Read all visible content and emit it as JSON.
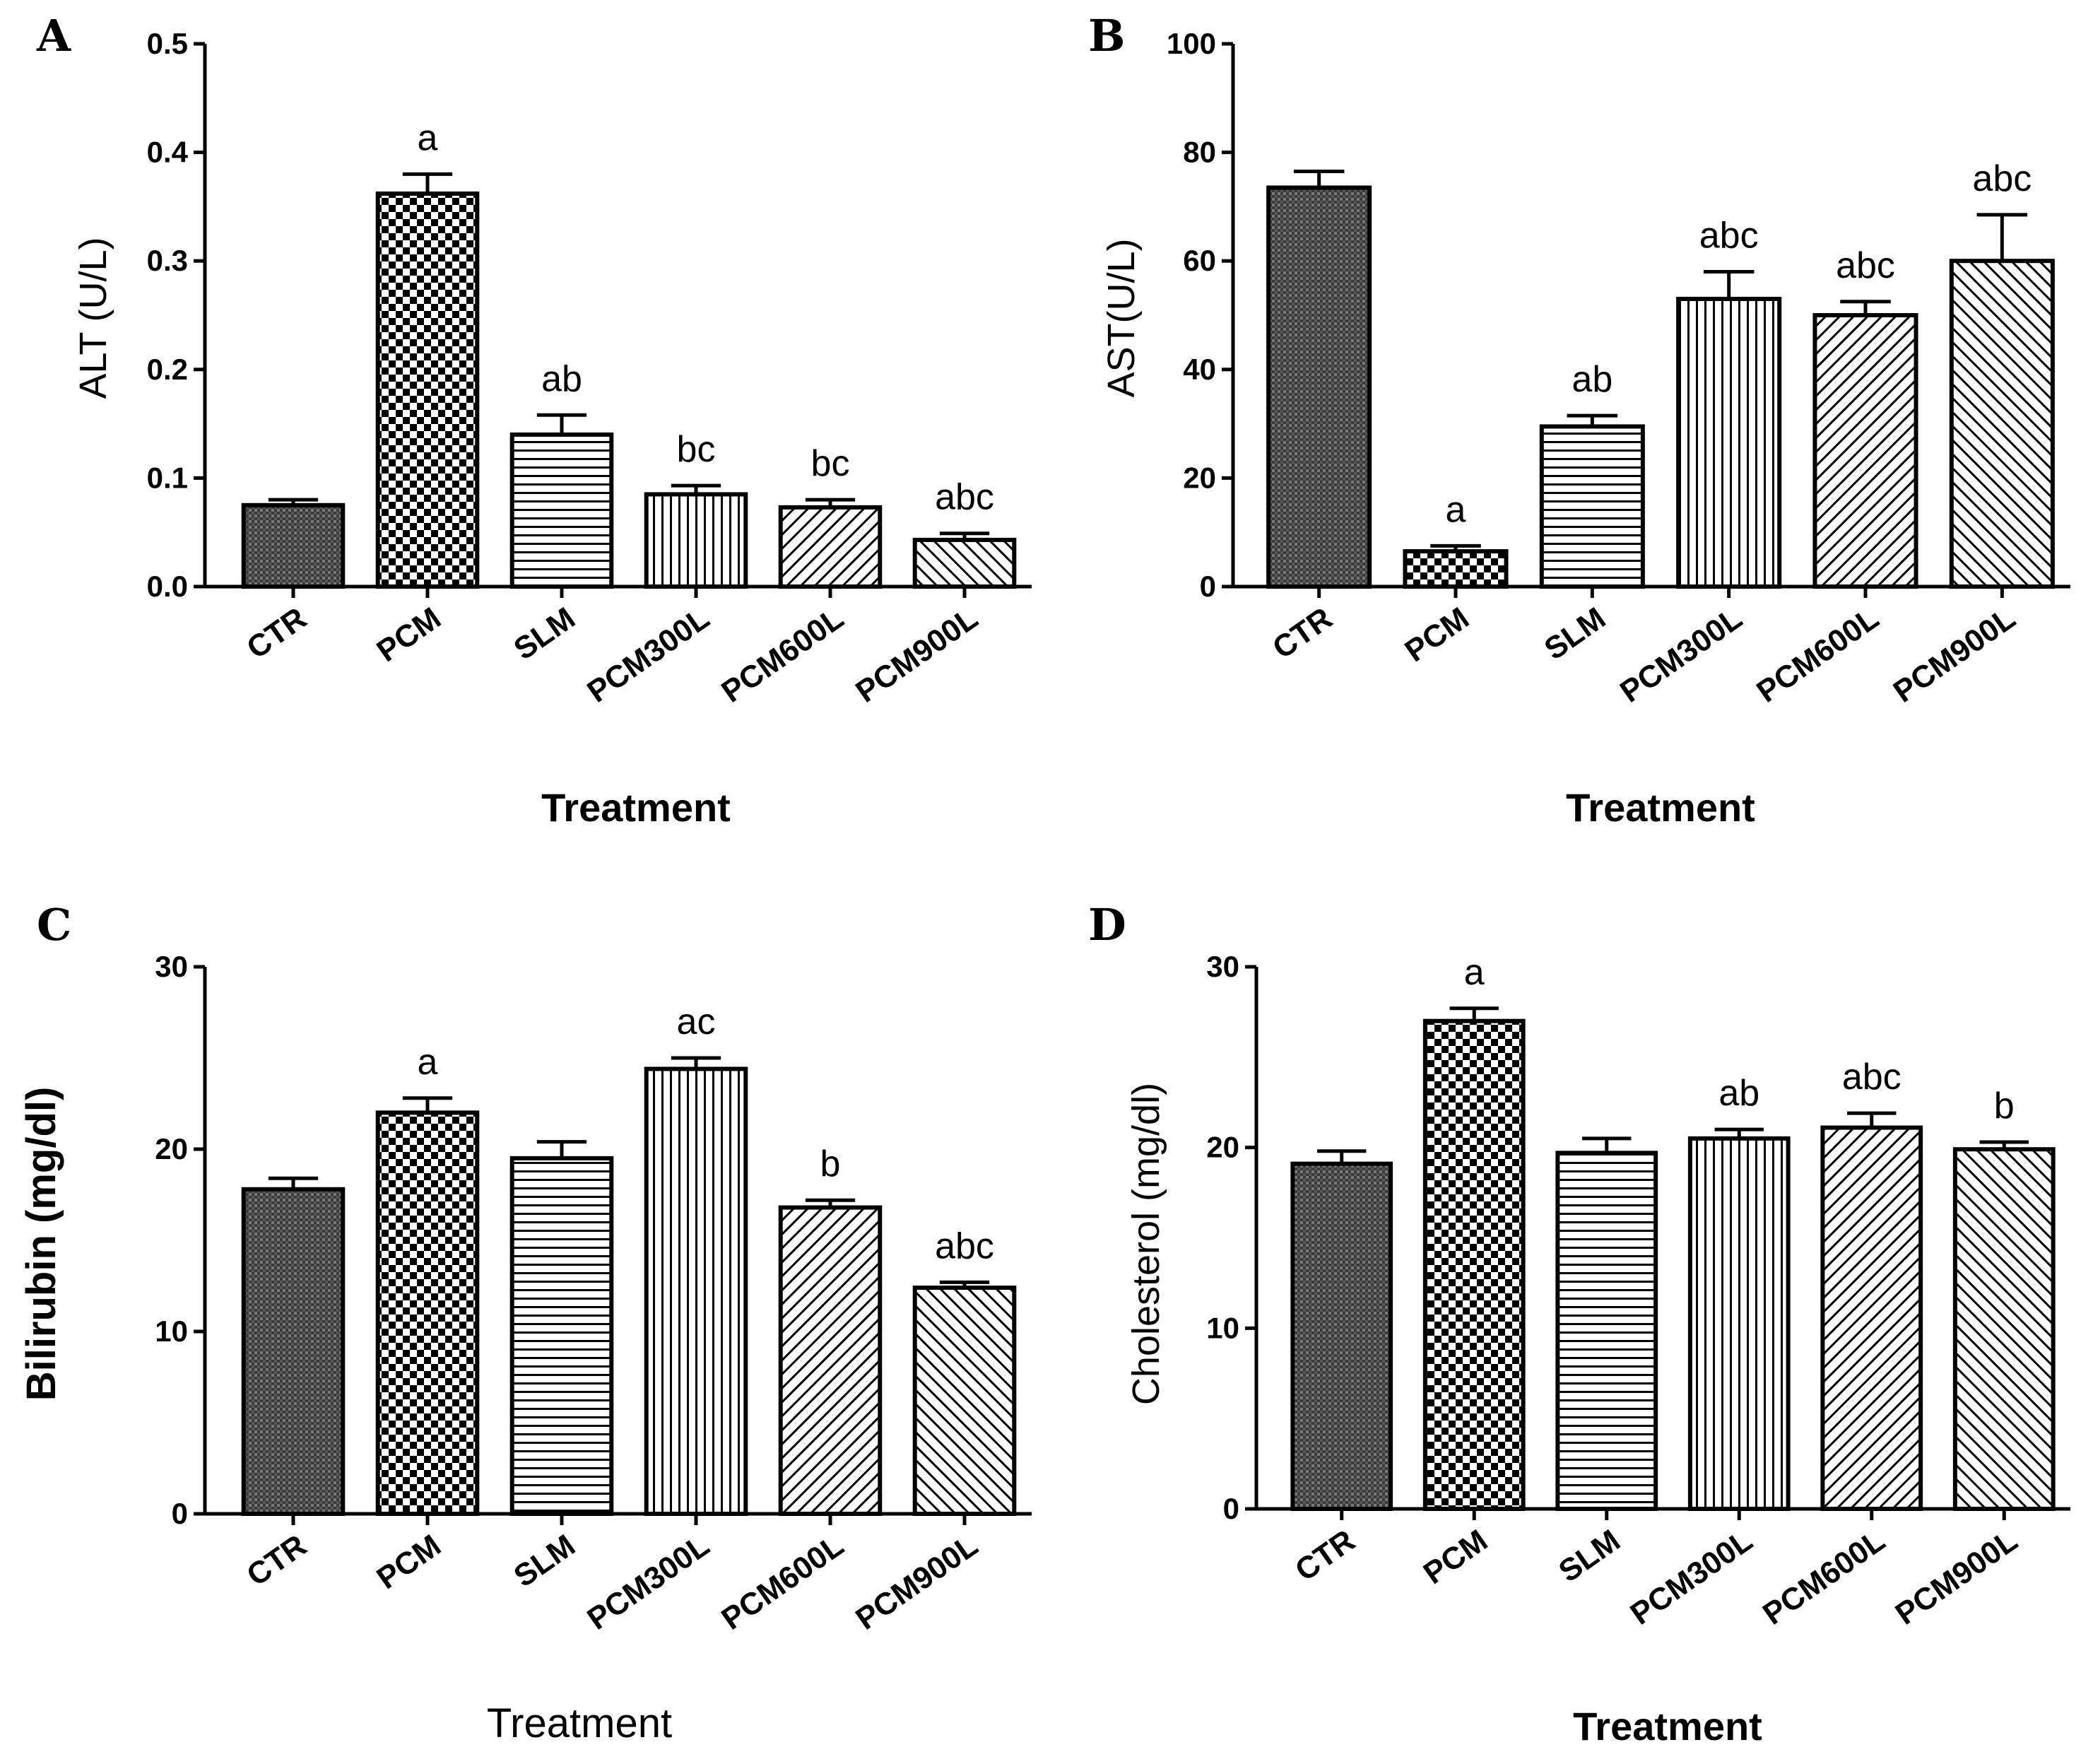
{
  "chart_data": [
    {
      "type": "bar",
      "panel": "A",
      "categories": [
        "CTR",
        "PCM",
        "SLM",
        "PCM300L",
        "PCM600L",
        "PCM900L"
      ],
      "values": [
        0.075,
        0.362,
        0.14,
        0.085,
        0.073,
        0.043
      ],
      "errors": [
        0.005,
        0.018,
        0.018,
        0.008,
        0.007,
        0.006
      ],
      "significance": [
        "",
        "a",
        "ab",
        "bc",
        "bc",
        "abc"
      ],
      "ylabel": "ALT (U/L)",
      "xlabel": "Treatment",
      "ylim": [
        0,
        0.5
      ],
      "yticks": [
        "0.0",
        "0.1",
        "0.2",
        "0.3",
        "0.4",
        "0.5"
      ],
      "grid": false
    },
    {
      "type": "bar",
      "panel": "B",
      "categories": [
        "CTR",
        "PCM",
        "SLM",
        "PCM300L",
        "PCM600L",
        "PCM900L"
      ],
      "values": [
        73.5,
        6.5,
        29.5,
        53.0,
        50.0,
        60.0
      ],
      "errors": [
        3.0,
        1.0,
        2.0,
        5.0,
        2.5,
        8.5
      ],
      "significance": [
        "",
        "a",
        "ab",
        "abc",
        "abc",
        "abc"
      ],
      "ylabel": "AST(U/L)",
      "xlabel": "Treatment",
      "ylim": [
        0,
        100
      ],
      "yticks": [
        "0",
        "20",
        "40",
        "60",
        "80",
        "100"
      ],
      "grid": false
    },
    {
      "type": "bar",
      "panel": "C",
      "categories": [
        "CTR",
        "PCM",
        "SLM",
        "PCM300L",
        "PCM600L",
        "PCM900L"
      ],
      "values": [
        17.8,
        22.0,
        19.5,
        24.4,
        16.8,
        12.4
      ],
      "errors": [
        0.6,
        0.8,
        0.9,
        0.6,
        0.4,
        0.3
      ],
      "significance": [
        "",
        "a",
        "",
        "ac",
        "b",
        "abc"
      ],
      "ylabel": "Bilirubin (mg/dl)",
      "xlabel": "Treatment",
      "ylim": [
        0,
        30
      ],
      "yticks": [
        "0",
        "10",
        "20",
        "30"
      ],
      "grid": false
    },
    {
      "type": "bar",
      "panel": "D",
      "categories": [
        "CTR",
        "PCM",
        "SLM",
        "PCM300L",
        "PCM600L",
        "PCM900L"
      ],
      "values": [
        19.1,
        27.0,
        19.7,
        20.5,
        21.1,
        19.9
      ],
      "errors": [
        0.7,
        0.7,
        0.8,
        0.5,
        0.8,
        0.4
      ],
      "significance": [
        "",
        "a",
        "",
        "ab",
        "abc",
        "b"
      ],
      "ylabel": "Cholesterol (mg/dl)",
      "xlabel": "Treatment",
      "ylim": [
        0,
        30
      ],
      "yticks": [
        "0",
        "10",
        "20",
        "30"
      ],
      "grid": false
    }
  ],
  "colors": {
    "ink": "#000000",
    "background": "#ffffff",
    "pattern_dark": "#2a2a2a"
  },
  "patterns": [
    "fine-dark-texture",
    "checkerboard",
    "horizontal-lines",
    "vertical-lines",
    "diagonal-lines",
    "diagonal-lines-reverse"
  ]
}
